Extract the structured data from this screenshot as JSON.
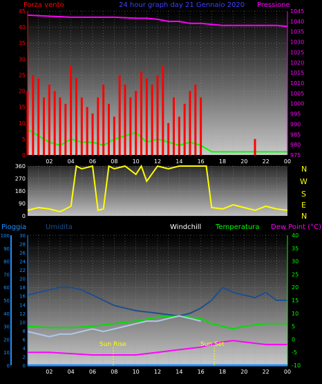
{
  "header": {
    "left_title": "Forza vento",
    "center_title": "24 hour graph day 21 Gennaio 2020",
    "right_title": "Pressione"
  },
  "wind_dir_labels": [
    "N",
    "W",
    "S",
    "E",
    "N"
  ],
  "bottom_header": {
    "pioggia": "Pioggia",
    "umidita": "Umidita",
    "windchill": "Windchill",
    "temperatura": "Temperatura",
    "dewpoint": "Dew Point (°C)"
  },
  "annotations": {
    "sun_rise": "Sun Rise",
    "sun_set": "Sun Set",
    "sun_rise_tick": "Sun Rise"
  },
  "colors": {
    "wind_gust": "#ff0000",
    "wind_avg": "#00ff00",
    "pressure": "#ff00ff",
    "direction": "#ffff00",
    "humidity": "#1e4e8c",
    "temperature": "#00e000",
    "windchill": "#b0c8e8",
    "dewpoint": "#ff00ff",
    "rain": "#1e90ff",
    "left_axis_top": "#ff0000",
    "left_axis_bottom": "#1e90ff",
    "right_axis_top": "#ff00ff",
    "right_axis_bottom": "#00ff00"
  },
  "chart_data": [
    {
      "id": "wind-pressure",
      "type": "line",
      "x_ticks": [
        "02",
        "04",
        "06",
        "08",
        "10",
        "12",
        "14",
        "16",
        "18",
        "20",
        "22",
        "00"
      ],
      "x_range": [
        0,
        24
      ],
      "y_left": {
        "label": "Forza vento",
        "range": [
          0,
          45
        ],
        "ticks": [
          0,
          5,
          10,
          15,
          20,
          25,
          30,
          35,
          40,
          45
        ]
      },
      "y_right": {
        "label": "Pressione",
        "range": [
          975,
          1045
        ],
        "ticks": [
          975,
          980,
          985,
          990,
          995,
          1000,
          1005,
          1010,
          1015,
          1020,
          1025,
          1030,
          1035,
          1040,
          1045
        ]
      },
      "series": [
        {
          "name": "pressure",
          "axis": "right",
          "x": [
            0,
            2,
            4,
            6,
            8,
            10,
            11,
            12,
            13,
            14,
            15,
            16,
            17,
            18,
            19,
            20,
            21,
            22,
            23,
            24
          ],
          "y": [
            1043,
            1042.5,
            1042,
            1042,
            1042,
            1041.5,
            1041.5,
            1041,
            1040,
            1040,
            1039,
            1039,
            1038.5,
            1038,
            1038,
            1038,
            1038,
            1038,
            1038,
            1037.5
          ]
        },
        {
          "name": "wind_avg",
          "axis": "left",
          "x": [
            0,
            1,
            2,
            3,
            4,
            5,
            6,
            7,
            8,
            9,
            10,
            11,
            12,
            13,
            14,
            15,
            16,
            17,
            18,
            19,
            20,
            21,
            22,
            23,
            24
          ],
          "y": [
            8,
            6,
            4,
            3,
            5,
            4,
            4,
            3,
            5,
            6,
            7,
            4,
            5,
            4,
            3,
            4,
            3,
            1,
            1,
            1,
            1,
            1,
            1,
            1,
            1
          ]
        },
        {
          "name": "wind_gust",
          "axis": "left",
          "x": [
            0,
            0.5,
            1,
            1.5,
            2,
            2.5,
            3,
            3.5,
            4,
            4.5,
            5,
            5.5,
            6,
            6.5,
            7,
            7.5,
            8,
            8.5,
            9,
            9.5,
            10,
            10.5,
            11,
            11.5,
            12,
            12.5,
            13,
            13.5,
            14,
            14.5,
            15,
            15.5,
            16,
            16.5,
            17,
            18,
            19,
            20,
            21,
            21.2,
            22,
            23,
            24
          ],
          "y": [
            20,
            25,
            24,
            18,
            22,
            20,
            18,
            16,
            28,
            24,
            18,
            15,
            13,
            18,
            22,
            16,
            12,
            25,
            22,
            18,
            20,
            26,
            24,
            22,
            25,
            28,
            10,
            18,
            12,
            16,
            20,
            22,
            18,
            0,
            0,
            0,
            0,
            0,
            5,
            0,
            0,
            0,
            0
          ]
        }
      ]
    },
    {
      "id": "wind-direction",
      "type": "line",
      "x_ticks": [],
      "x_range": [
        0,
        24
      ],
      "y_left": {
        "range": [
          0,
          360
        ],
        "ticks": [
          0,
          90,
          180,
          270,
          360
        ]
      },
      "series": [
        {
          "name": "direction",
          "x": [
            0,
            1,
            2,
            3,
            4,
            4.5,
            5,
            6,
            6.5,
            7,
            7.5,
            8,
            9,
            10,
            10.5,
            11,
            12,
            13,
            14,
            15,
            16,
            16.5,
            17,
            18,
            19,
            20,
            21,
            22,
            23,
            24
          ],
          "y": [
            40,
            60,
            50,
            30,
            70,
            360,
            340,
            360,
            40,
            50,
            360,
            340,
            360,
            300,
            360,
            250,
            360,
            340,
            360,
            360,
            360,
            360,
            60,
            50,
            80,
            60,
            40,
            70,
            50,
            40
          ]
        }
      ]
    },
    {
      "id": "temp-humidity",
      "type": "line",
      "x_ticks": [
        "02",
        "04",
        "06",
        "08",
        "10",
        "12",
        "14",
        "16",
        "18",
        "20",
        "22",
        "00"
      ],
      "x_range": [
        0,
        24
      ],
      "y_left_outer": {
        "label": "Pioggia",
        "range": [
          0,
          100
        ],
        "ticks": [
          0,
          10,
          20,
          30,
          40,
          50,
          60,
          70,
          80,
          90,
          100
        ]
      },
      "y_left_inner": {
        "label": "Umidita",
        "range": [
          0,
          30
        ],
        "ticks": [
          0,
          2,
          4,
          6,
          8,
          10,
          12,
          14,
          16,
          18,
          20,
          22,
          24,
          26,
          28,
          30
        ]
      },
      "y_right": {
        "label": "Temperatura",
        "range": [
          -10,
          40
        ],
        "ticks": [
          -10,
          -5,
          0,
          5,
          10,
          15,
          20,
          25,
          30,
          35,
          40
        ]
      },
      "series": [
        {
          "name": "humidity",
          "axis": "right",
          "x": [
            0,
            1,
            2,
            3,
            4,
            5,
            6,
            7,
            8,
            9,
            10,
            11,
            12,
            13,
            14,
            15,
            16,
            17,
            18,
            19,
            20,
            21,
            22,
            23,
            24
          ],
          "y": [
            17,
            18,
            19,
            20,
            20,
            19,
            17,
            15,
            13,
            12,
            11,
            10.5,
            10,
            9.5,
            9,
            10,
            12,
            15,
            20,
            18,
            17,
            16,
            18,
            15,
            15
          ]
        },
        {
          "name": "temperature",
          "axis": "right",
          "x": [
            0,
            2,
            4,
            6,
            8,
            10,
            12,
            14,
            16,
            17,
            18,
            19,
            20,
            22,
            24
          ],
          "y": [
            5,
            4.5,
            4.5,
            5,
            6,
            7,
            8.5,
            9,
            8,
            6,
            5,
            4,
            5,
            6,
            6
          ]
        },
        {
          "name": "windchill",
          "axis": "right",
          "x": [
            0,
            1,
            2,
            3,
            4,
            5,
            6,
            7,
            8,
            9,
            10,
            11,
            12,
            13,
            14,
            15,
            16
          ],
          "y": [
            3,
            2,
            1,
            2,
            2,
            3,
            4,
            3,
            4,
            5,
            6,
            7,
            7,
            8,
            9,
            8,
            7
          ]
        },
        {
          "name": "dewpoint",
          "axis": "right",
          "x": [
            0,
            2,
            4,
            6,
            8,
            10,
            12,
            14,
            16,
            17,
            18,
            19,
            20,
            22,
            24
          ],
          "y": [
            -5,
            -5,
            -5.5,
            -6,
            -6,
            -6,
            -5,
            -4,
            -3,
            -2,
            -1,
            -0.5,
            -1,
            -2,
            -2
          ]
        },
        {
          "name": "rain",
          "axis": "left_outer",
          "x": [
            0,
            24
          ],
          "y": [
            0,
            0
          ]
        }
      ]
    }
  ]
}
